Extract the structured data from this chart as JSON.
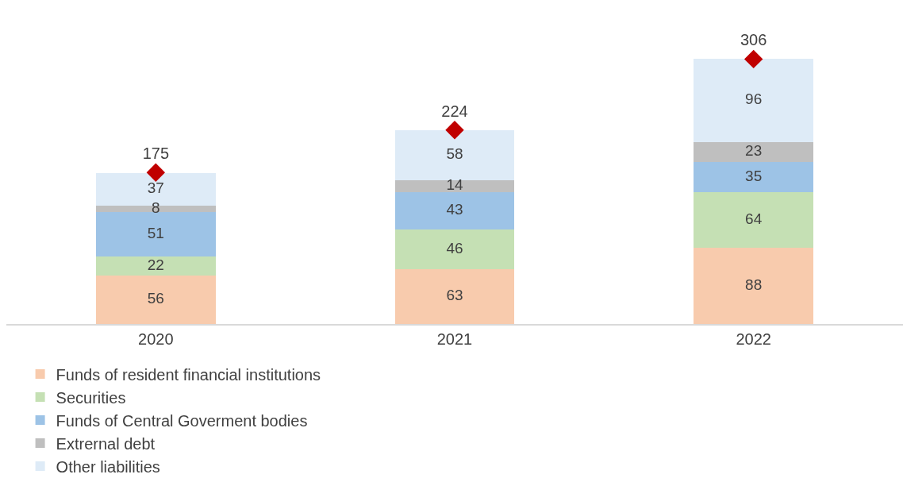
{
  "chart_data": {
    "type": "bar",
    "stacked": true,
    "categories": [
      "2020",
      "2021",
      "2022"
    ],
    "data_labels": true,
    "legend": "bottom",
    "tick_labels": "x",
    "series": [
      {
        "name": "Funds of resident financial institutions",
        "color": "#f8cbad",
        "values": [
          56,
          63,
          88
        ]
      },
      {
        "name": "Securities",
        "color": "#c5e0b4",
        "values": [
          22,
          46,
          64
        ]
      },
      {
        "name": "Funds of Central Goverment bodies",
        "color": "#9dc3e6",
        "values": [
          51,
          43,
          35
        ]
      },
      {
        "name": "Extrernal debt",
        "color": "#bfbfbf",
        "values": [
          8,
          14,
          23
        ]
      },
      {
        "name": "Other liabilities",
        "color": "#deebf7",
        "values": [
          37,
          58,
          96
        ]
      },
      {
        "type": "scatter",
        "marker": "diamond",
        "color": "#c00000",
        "values": [
          175,
          224,
          306
        ]
      }
    ]
  }
}
